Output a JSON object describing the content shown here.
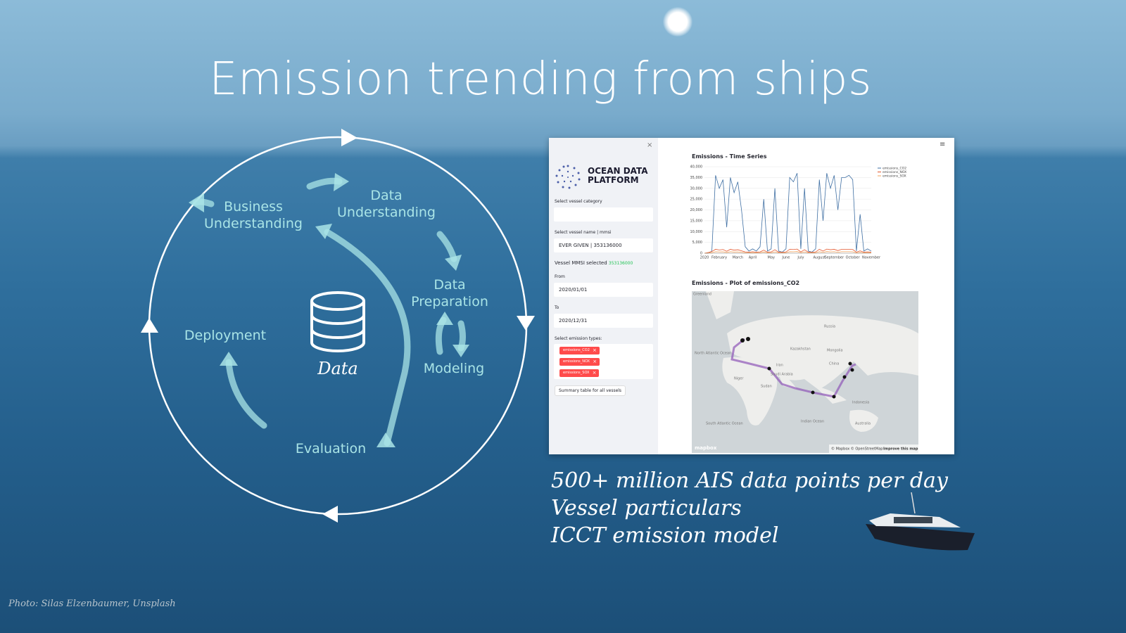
{
  "title": "Emission trending from ships",
  "cycle": {
    "center": "Data",
    "stages": [
      "Business Understanding",
      "Data Understanding",
      "Data Preparation",
      "Modeling",
      "Evaluation",
      "Deployment"
    ]
  },
  "app": {
    "brand": "OCEAN DATA PLATFORM",
    "sidebar": {
      "category_label": "Select vessel category",
      "vessel_label": "Select vessel name | mmsi",
      "vessel": "EVER GIVEN | 353136000",
      "mmsi_label": "Vessel MMSI selected",
      "mmsi": "353136000",
      "from_label": "From",
      "from": "2020/01/01",
      "to_label": "To",
      "to": "2020/12/31",
      "types_label": "Select emission types:",
      "types": [
        "emissions_CO2",
        "emissions_NOX",
        "emissions_SOX"
      ],
      "button": "Summary table for all vessels"
    },
    "timeseries": {
      "type": "line",
      "title": "Emissions - Time Series",
      "categories": [
        "2020",
        null,
        null,
        null,
        "February",
        null,
        null,
        null,
        null,
        "March",
        null,
        null,
        null,
        "April",
        null,
        null,
        null,
        null,
        "May",
        null,
        null,
        null,
        "June",
        null,
        null,
        null,
        "July",
        null,
        null,
        null,
        null,
        "August",
        null,
        null,
        null,
        "September",
        null,
        null,
        null,
        null,
        "October",
        null,
        null,
        null,
        null,
        "November"
      ],
      "ylim": [
        0,
        40000
      ],
      "yticks": [
        0,
        {
          "value": 5000,
          "label": "5,000"
        },
        {
          "value": 10000,
          "label": "10,000"
        },
        {
          "value": 15000,
          "label": "15,000"
        },
        {
          "value": 20000,
          "label": "20,000"
        },
        {
          "value": 25000,
          "label": "25,000"
        },
        {
          "value": 30000,
          "label": "30,000"
        },
        {
          "value": 35000,
          "label": "35,000"
        },
        {
          "value": 40000,
          "label": "40,000"
        }
      ],
      "grid": true,
      "series": [
        {
          "name": "emissions_CO2",
          "color": "#3f6fa3",
          "values": [
            0,
            0,
            1000,
            36000,
            30000,
            34000,
            12000,
            35000,
            28000,
            33000,
            20000,
            3000,
            1000,
            2000,
            1000,
            3000,
            25000,
            1000,
            2000,
            30000,
            1000,
            500,
            2000,
            35000,
            33000,
            37000,
            2000,
            30000,
            1000,
            500,
            2000,
            34000,
            15000,
            37000,
            30000,
            36000,
            20000,
            35000,
            35000,
            36000,
            34000,
            1000,
            18000,
            1000,
            2000,
            1000
          ]
        },
        {
          "name": "emissions_NOX",
          "color": "#e4572e",
          "values": [
            0,
            300,
            800,
            1800,
            1500,
            1700,
            900,
            1800,
            1400,
            1600,
            1100,
            600,
            500,
            700,
            500,
            600,
            1400,
            500,
            600,
            1600,
            500,
            400,
            600,
            1800,
            1700,
            1900,
            600,
            1600,
            500,
            400,
            600,
            1800,
            1000,
            1900,
            1600,
            1800,
            1200,
            1800,
            1800,
            1800,
            1700,
            500,
            1100,
            500,
            600,
            500
          ]
        },
        {
          "name": "emissions_SOX",
          "color": "#f4a259",
          "values": [
            0,
            100,
            300,
            700,
            600,
            650,
            350,
            700,
            550,
            600,
            400,
            250,
            200,
            250,
            200,
            250,
            550,
            200,
            250,
            600,
            200,
            150,
            250,
            700,
            650,
            750,
            250,
            600,
            200,
            150,
            250,
            700,
            400,
            750,
            600,
            700,
            450,
            700,
            700,
            700,
            650,
            200,
            400,
            200,
            250,
            200
          ]
        }
      ]
    },
    "map": {
      "title": "Emissions - Plot of emissions_CO2",
      "labels": [
        "Greenland",
        "Russia",
        "North Atlantic Ocean",
        "Kazakhstan",
        "Mongolia",
        "China",
        "Iran",
        "Saudi Arabia",
        "Sudan",
        "Niger",
        "South Atlantic Ocean",
        "Indian Ocean",
        "Indonesia",
        "Australia"
      ],
      "logo": "mapbox",
      "attribution": "© Mapbox © OpenStreetMap",
      "improve": "Improve this map"
    }
  },
  "bullets": [
    "500+ million  AIS data points per day",
    "Vessel particulars",
    "ICCT emission model"
  ],
  "credit": "Photo: Silas Elzenbaumer, Unsplash"
}
